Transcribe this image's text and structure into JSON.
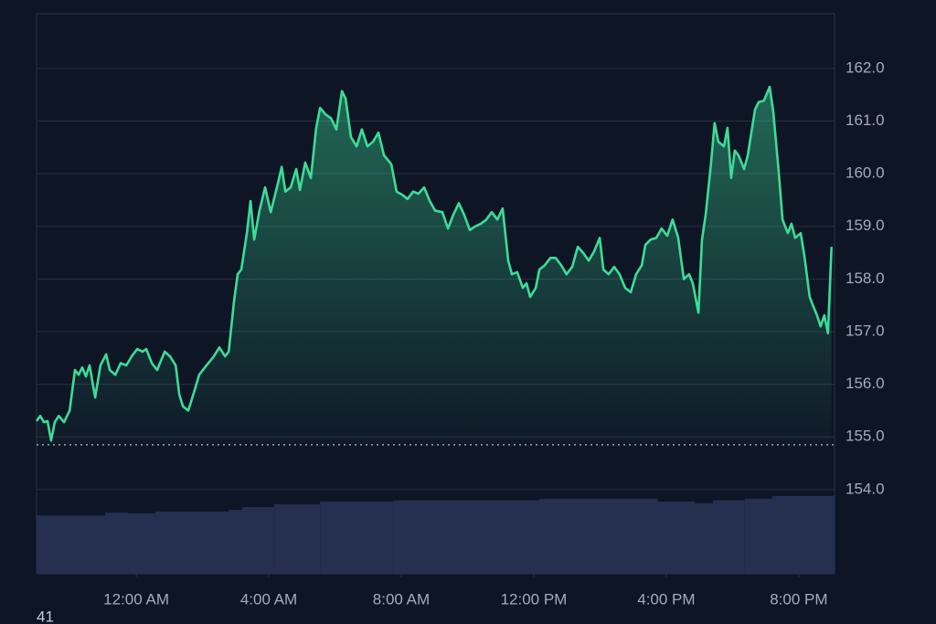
{
  "chart_data": {
    "type": "line",
    "xlim": [
      -3.01,
      21.08
    ],
    "xticks": [
      {
        "value": 0,
        "label": "12:00 AM"
      },
      {
        "value": 4,
        "label": "4:00 AM"
      },
      {
        "value": 8,
        "label": "8:00 AM"
      },
      {
        "value": 12,
        "label": "12:00 PM"
      },
      {
        "value": 16,
        "label": "4:00 PM"
      },
      {
        "value": 20,
        "label": "8:00 PM"
      }
    ],
    "ylim": [
      152.4,
      163.04
    ],
    "yticks": [
      {
        "value": 154,
        "label": "154.0"
      },
      {
        "value": 155,
        "label": "155.0"
      },
      {
        "value": 156,
        "label": "156.0"
      },
      {
        "value": 157,
        "label": "157.0"
      },
      {
        "value": 158,
        "label": "158.0"
      },
      {
        "value": 159,
        "label": "159.0"
      },
      {
        "value": 160,
        "label": "160.0"
      },
      {
        "value": 161,
        "label": "161.0"
      },
      {
        "value": 162,
        "label": "162.0"
      }
    ],
    "y2lim": [
      0,
      100
    ],
    "grid": true,
    "reference_line": 154.85,
    "annotation": "41",
    "series": [
      {
        "color": "#3ddc97",
        "x": [
          -3.01,
          -2.9,
          -2.79,
          -2.68,
          -2.57,
          -2.46,
          -2.34,
          -2.18,
          -2.01,
          -1.85,
          -1.74,
          -1.63,
          -1.52,
          -1.41,
          -1.24,
          -1.08,
          -0.91,
          -0.8,
          -0.63,
          -0.47,
          -0.3,
          -0.14,
          0.03,
          0.19,
          0.3,
          0.47,
          0.63,
          0.86,
          1.02,
          1.19,
          1.3,
          1.41,
          1.57,
          1.74,
          1.9,
          2.12,
          2.34,
          2.51,
          2.68,
          2.79,
          2.95,
          3.06,
          3.17,
          3.34,
          3.45,
          3.56,
          3.72,
          3.89,
          4.06,
          4.28,
          4.39,
          4.5,
          4.66,
          4.83,
          4.94,
          5.1,
          5.27,
          5.43,
          5.55,
          5.71,
          5.88,
          6.04,
          6.21,
          6.32,
          6.48,
          6.65,
          6.81,
          6.98,
          7.15,
          7.31,
          7.48,
          7.7,
          7.86,
          8.03,
          8.19,
          8.36,
          8.52,
          8.69,
          8.86,
          9.02,
          9.24,
          9.41,
          9.57,
          9.74,
          9.9,
          10.07,
          10.23,
          10.4,
          10.57,
          10.73,
          10.9,
          11.06,
          11.23,
          11.34,
          11.5,
          11.67,
          11.78,
          11.89,
          12.06,
          12.17,
          12.33,
          12.5,
          12.66,
          12.83,
          12.99,
          13.16,
          13.33,
          13.49,
          13.66,
          13.82,
          13.99,
          14.1,
          14.26,
          14.43,
          14.59,
          14.76,
          14.93,
          15.09,
          15.26,
          15.37,
          15.53,
          15.7,
          15.86,
          16.03,
          16.19,
          16.36,
          16.53,
          16.69,
          16.8,
          16.97,
          17.08,
          17.19,
          17.35,
          17.46,
          17.57,
          17.74,
          17.85,
          17.96,
          18.07,
          18.18,
          18.35,
          18.46,
          18.57,
          18.68,
          18.79,
          18.95,
          19.12,
          19.23,
          19.4,
          19.51,
          19.67,
          19.78,
          19.89,
          20.06,
          20.17,
          20.33,
          20.44,
          20.55,
          20.66,
          20.77,
          20.88,
          20.99
        ],
        "values": [
          155.3,
          155.4,
          155.28,
          155.3,
          154.93,
          155.28,
          155.4,
          155.28,
          155.5,
          156.27,
          156.18,
          156.32,
          156.15,
          156.36,
          155.75,
          156.36,
          156.57,
          156.27,
          156.18,
          156.4,
          156.36,
          156.53,
          156.67,
          156.62,
          156.67,
          156.4,
          156.27,
          156.62,
          156.53,
          156.36,
          155.8,
          155.58,
          155.5,
          155.84,
          156.18,
          156.36,
          156.53,
          156.7,
          156.53,
          156.62,
          157.57,
          158.09,
          158.18,
          158.87,
          159.48,
          158.75,
          159.3,
          159.74,
          159.27,
          159.83,
          160.13,
          159.66,
          159.74,
          160.09,
          159.69,
          160.21,
          159.92,
          160.87,
          161.25,
          161.13,
          161.05,
          160.84,
          161.57,
          161.43,
          160.7,
          160.52,
          160.84,
          160.52,
          160.61,
          160.78,
          160.35,
          160.18,
          159.66,
          159.6,
          159.52,
          159.66,
          159.62,
          159.74,
          159.48,
          159.3,
          159.27,
          158.96,
          159.22,
          159.44,
          159.22,
          158.93,
          159.0,
          159.05,
          159.13,
          159.27,
          159.13,
          159.34,
          158.35,
          158.09,
          158.13,
          157.83,
          157.92,
          157.66,
          157.83,
          158.18,
          158.26,
          158.4,
          158.4,
          158.26,
          158.09,
          158.23,
          158.61,
          158.5,
          158.35,
          158.52,
          158.78,
          158.18,
          158.09,
          158.23,
          158.09,
          157.83,
          157.75,
          158.09,
          158.26,
          158.65,
          158.75,
          158.78,
          158.96,
          158.82,
          159.13,
          158.78,
          158.0,
          158.09,
          157.92,
          157.36,
          158.75,
          159.22,
          160.18,
          160.96,
          160.61,
          160.52,
          160.87,
          159.92,
          160.44,
          160.35,
          160.09,
          160.35,
          160.78,
          161.22,
          161.36,
          161.39,
          161.65,
          161.18,
          160.0,
          159.13,
          158.87,
          159.05,
          158.78,
          158.87,
          158.44,
          157.66,
          157.48,
          157.31,
          157.1,
          157.31,
          156.97,
          158.61
        ]
      },
      {
        "color": "#252f50",
        "axis": "y2",
        "x": [
          -3.01,
          -0.94,
          -0.25,
          0.58,
          2.79,
          3.2,
          4.17,
          5.55,
          7.75,
          12.17,
          15.75,
          16.86,
          17.41,
          18.37,
          19.2
        ],
        "values": [
          10.4,
          10.9,
          10.8,
          11.1,
          11.4,
          11.9,
          12.4,
          12.9,
          13.1,
          13.4,
          12.9,
          12.6,
          13.1,
          13.4,
          13.9
        ]
      }
    ]
  }
}
